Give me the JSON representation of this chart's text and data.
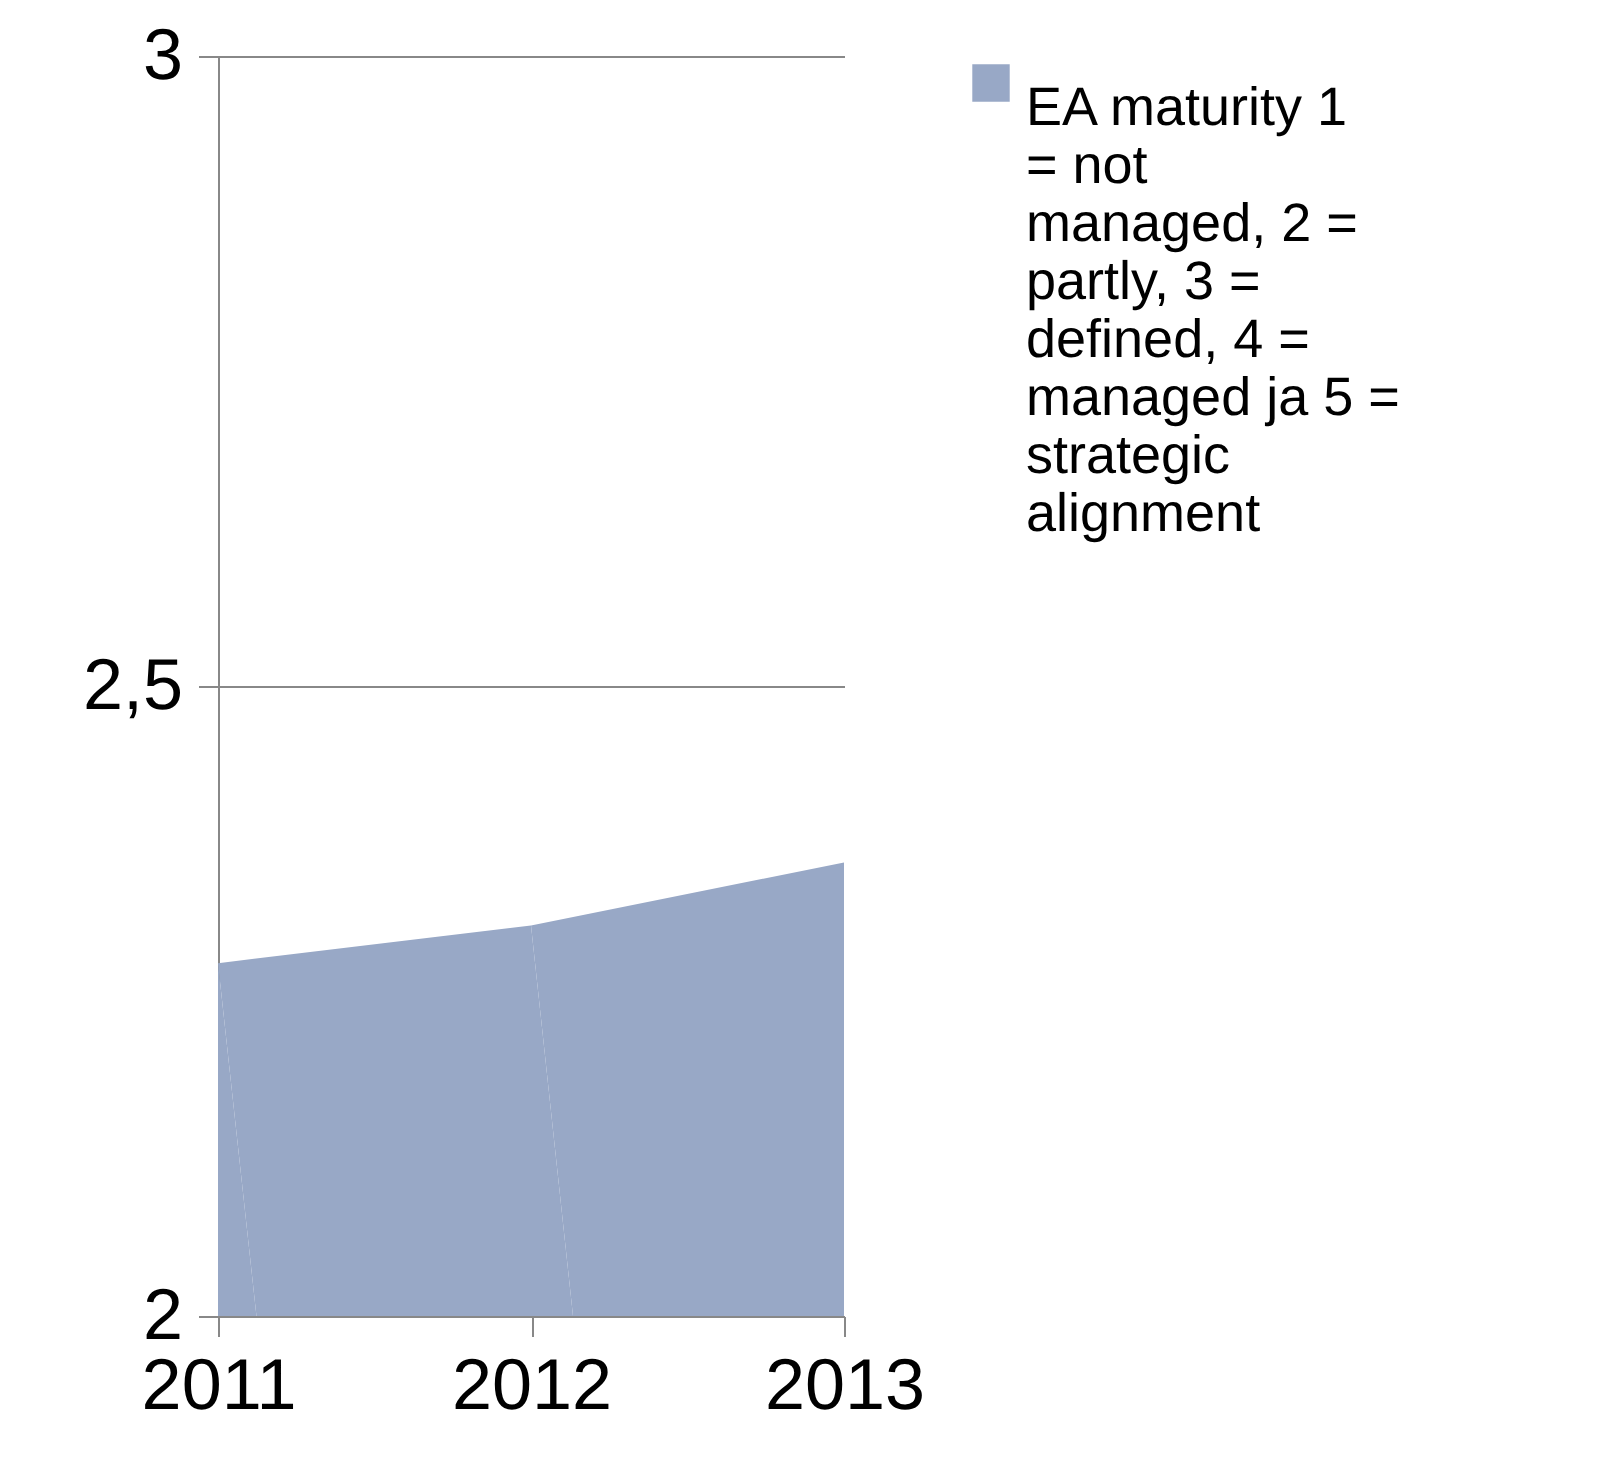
{
  "chart_data": {
    "type": "area",
    "categories": [
      "2011",
      "2012",
      "2013"
    ],
    "series": [
      {
        "name": "EA maturity 1 =  not managed, 2 = partly, 3 = defined, 4 = managed ja 5 = strategic alignment",
        "color": "#98a8c6",
        "values": [
          2.28,
          2.31,
          2.36
        ]
      }
    ],
    "ylim": [
      2,
      3
    ],
    "yticks": [
      2,
      {
        "value": 2.5,
        "label": "2,5"
      },
      3
    ],
    "grid": "y",
    "legend": "right"
  }
}
